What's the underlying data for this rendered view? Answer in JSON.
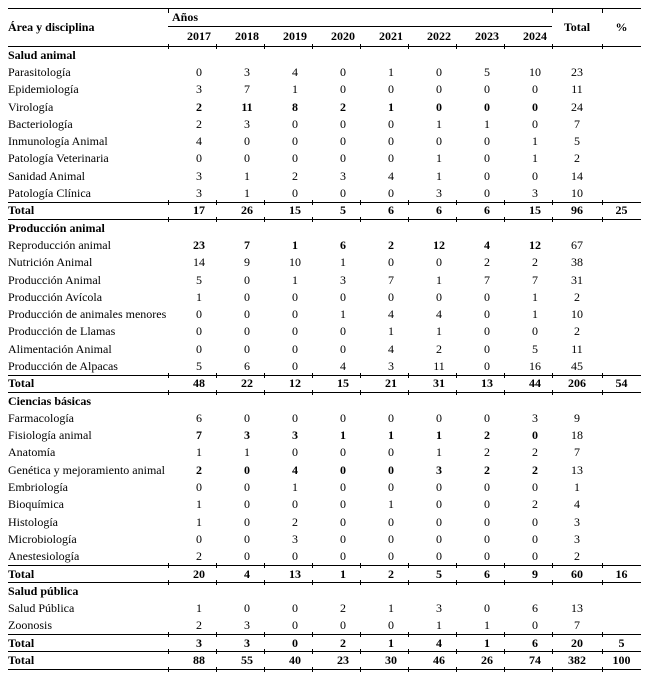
{
  "table": {
    "header": {
      "stub": "Área y disciplina",
      "years_label": "Años",
      "years": [
        "2017",
        "2018",
        "2019",
        "2020",
        "2021",
        "2022",
        "2023",
        "2024"
      ],
      "total": "Total",
      "percent": "%"
    },
    "sections": [
      {
        "name": "Salud animal",
        "rows": [
          {
            "label": "Parasitología",
            "values": [
              0,
              3,
              4,
              0,
              1,
              0,
              5,
              10
            ],
            "total": 23
          },
          {
            "label": "Epidemiología",
            "values": [
              3,
              7,
              1,
              0,
              0,
              0,
              0,
              0
            ],
            "total": 11
          },
          {
            "label": "Virología",
            "values": [
              2,
              11,
              8,
              2,
              1,
              0,
              0,
              0
            ],
            "total": 24,
            "bold_values": true
          },
          {
            "label": "Bacteriología",
            "values": [
              2,
              3,
              0,
              0,
              0,
              1,
              1,
              0
            ],
            "total": 7
          },
          {
            "label": "Inmunología Animal",
            "values": [
              4,
              0,
              0,
              0,
              0,
              0,
              0,
              1
            ],
            "total": 5
          },
          {
            "label": "Patología Veterinaria",
            "values": [
              0,
              0,
              0,
              0,
              0,
              1,
              0,
              1
            ],
            "total": 2
          },
          {
            "label": "Sanidad Animal",
            "values": [
              3,
              1,
              2,
              3,
              4,
              1,
              0,
              0
            ],
            "total": 14
          },
          {
            "label": "Patología Clínica",
            "values": [
              3,
              1,
              0,
              0,
              0,
              3,
              0,
              3
            ],
            "total": 10
          }
        ],
        "total_row": {
          "label": "Total",
          "values": [
            17,
            26,
            15,
            5,
            6,
            6,
            6,
            15
          ],
          "total": 96,
          "percent": 25
        }
      },
      {
        "name": "Producción animal",
        "rows": [
          {
            "label": "Reproducción animal",
            "values": [
              23,
              7,
              1,
              6,
              2,
              12,
              4,
              12
            ],
            "total": 67,
            "bold_values": true
          },
          {
            "label": "Nutrición Animal",
            "values": [
              14,
              9,
              10,
              1,
              0,
              0,
              2,
              2
            ],
            "total": 38
          },
          {
            "label": "Producción Animal",
            "values": [
              5,
              0,
              1,
              3,
              7,
              1,
              7,
              7
            ],
            "total": 31
          },
          {
            "label": "Producción Avícola",
            "values": [
              1,
              0,
              0,
              0,
              0,
              0,
              0,
              1
            ],
            "total": 2
          },
          {
            "label": "Producción de animales menores",
            "values": [
              0,
              0,
              0,
              1,
              4,
              4,
              0,
              1
            ],
            "total": 10
          },
          {
            "label": "Producción de Llamas",
            "values": [
              0,
              0,
              0,
              0,
              1,
              1,
              0,
              0
            ],
            "total": 2
          },
          {
            "label": "Alimentación Animal",
            "values": [
              0,
              0,
              0,
              0,
              4,
              2,
              0,
              5
            ],
            "total": 11
          },
          {
            "label": "Producción de Alpacas",
            "values": [
              5,
              6,
              0,
              4,
              3,
              11,
              0,
              16
            ],
            "total": 45
          }
        ],
        "total_row": {
          "label": "Total",
          "values": [
            48,
            22,
            12,
            15,
            21,
            31,
            13,
            44
          ],
          "total": 206,
          "percent": 54
        }
      },
      {
        "name": "Ciencias básicas",
        "rows": [
          {
            "label": "Farmacología",
            "values": [
              6,
              0,
              0,
              0,
              0,
              0,
              0,
              3
            ],
            "total": 9
          },
          {
            "label": "Fisiología animal",
            "values": [
              7,
              3,
              3,
              1,
              1,
              1,
              2,
              0
            ],
            "total": 18,
            "bold_values": true
          },
          {
            "label": "Anatomía",
            "values": [
              1,
              1,
              0,
              0,
              0,
              1,
              2,
              2
            ],
            "total": 7
          },
          {
            "label": "Genética y mejoramiento animal",
            "values": [
              2,
              0,
              4,
              0,
              0,
              3,
              2,
              2
            ],
            "total": 13,
            "bold_values": true
          },
          {
            "label": "Embriología",
            "values": [
              0,
              0,
              1,
              0,
              0,
              0,
              0,
              0
            ],
            "total": 1
          },
          {
            "label": "Bioquímica",
            "values": [
              1,
              0,
              0,
              0,
              1,
              0,
              0,
              2
            ],
            "total": 4
          },
          {
            "label": "Histología",
            "values": [
              1,
              0,
              2,
              0,
              0,
              0,
              0,
              0
            ],
            "total": 3
          },
          {
            "label": "Microbiología",
            "values": [
              0,
              0,
              3,
              0,
              0,
              0,
              0,
              0
            ],
            "total": 3
          },
          {
            "label": "Anestesiología",
            "values": [
              2,
              0,
              0,
              0,
              0,
              0,
              0,
              0
            ],
            "total": 2
          }
        ],
        "total_row": {
          "label": "Total",
          "values": [
            20,
            4,
            13,
            1,
            2,
            5,
            6,
            9
          ],
          "total": 60,
          "percent": 16
        }
      },
      {
        "name": "Salud pública",
        "rows": [
          {
            "label": "Salud Pública",
            "values": [
              1,
              0,
              0,
              2,
              1,
              3,
              0,
              6
            ],
            "total": 13
          },
          {
            "label": "Zoonosis",
            "values": [
              2,
              3,
              0,
              0,
              0,
              1,
              1,
              0
            ],
            "total": 7
          }
        ],
        "total_row": {
          "label": "Total",
          "values": [
            3,
            3,
            0,
            2,
            1,
            4,
            1,
            6
          ],
          "total": 20,
          "percent": 5
        }
      }
    ],
    "grand_total": {
      "label": "Total",
      "values": [
        88,
        55,
        40,
        23,
        30,
        46,
        26,
        74
      ],
      "total": 382,
      "percent": 100
    }
  }
}
